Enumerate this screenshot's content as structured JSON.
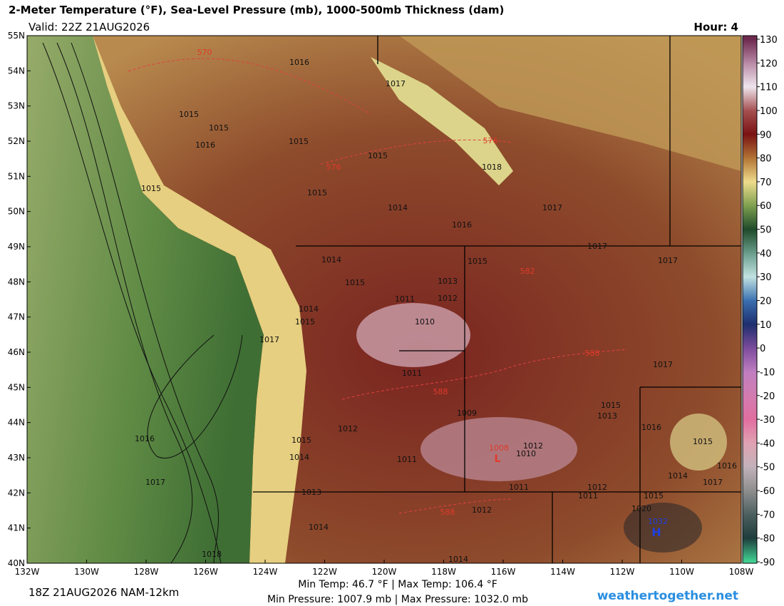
{
  "header": {
    "title": "2-Meter Temperature (°F), Sea-Level Pressure (mb), 1000-500mb Thickness (dam)",
    "valid": "Valid: 22Z 21AUG2026",
    "hour": "Hour: 4"
  },
  "map": {
    "lat_labels": [
      "55N",
      "54N",
      "53N",
      "52N",
      "51N",
      "50N",
      "49N",
      "48N",
      "47N",
      "46N",
      "45N",
      "44N",
      "43N",
      "42N",
      "41N",
      "40N"
    ],
    "lon_labels": [
      "132W",
      "130W",
      "128W",
      "126W",
      "124W",
      "122W",
      "120W",
      "118W",
      "116W",
      "114W",
      "112W",
      "110W",
      "108W"
    ],
    "pressure_labels": [
      1016,
      1017,
      1015,
      1015,
      1016,
      1015,
      1015,
      1018,
      1015,
      1015,
      1014,
      1017,
      1016,
      1017,
      1017,
      1014,
      1015,
      1015,
      1013,
      1011,
      1012,
      1014,
      1015,
      1010,
      1017,
      1011,
      1017,
      1009,
      1015,
      1013,
      1016,
      1012,
      1016,
      1015,
      1015,
      1012,
      1010,
      1014,
      1011,
      1016,
      1014,
      1017,
      1017,
      1011,
      1012,
      1013,
      1011,
      1015,
      1020,
      1012,
      1014,
      1014,
      1018
    ],
    "thickness_labels": [
      570,
      576,
      576,
      582,
      588,
      588,
      588
    ],
    "low": {
      "value": 1008,
      "symbol": "L"
    },
    "high": {
      "value": 1032,
      "symbol": "H"
    }
  },
  "colorbar": {
    "ticks": [
      130,
      120,
      110,
      100,
      90,
      80,
      70,
      60,
      50,
      40,
      30,
      20,
      10,
      0,
      -10,
      -20,
      -30,
      -40,
      -50,
      -60,
      -70,
      -80,
      -90
    ],
    "colors": [
      "#6e2a4e",
      "#b98aa6",
      "#efe6ee",
      "#a55050",
      "#7a1212",
      "#b27434",
      "#efdc8c",
      "#7ea050",
      "#1f4a2a",
      "#6a9e8c",
      "#c2e2e2",
      "#3a70b0",
      "#1e2e6e",
      "#7c4c9c",
      "#c07ec0",
      "#d27cb0",
      "#e06ea0",
      "#e0a2b2",
      "#c2b2ba",
      "#8e8e8e",
      "#4e6060",
      "#1e3c3c",
      "#42d494"
    ]
  },
  "footer": {
    "run": "18Z 21AUG2026 NAM-12km",
    "temp": "Min Temp:  46.7 °F | Max Temp: 106.4 °F",
    "pressure": "Min Pressure: 1007.9 mb | Max Pressure: 1032.0 mb",
    "site": "weathertogether.net"
  }
}
